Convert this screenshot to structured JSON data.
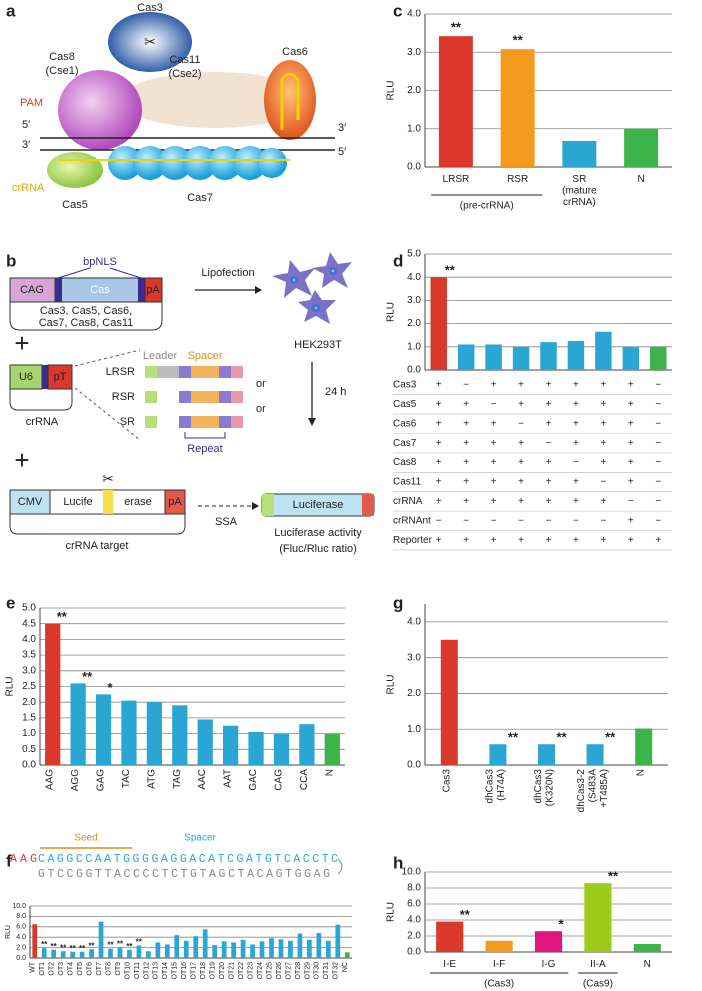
{
  "diagram_a": {
    "panel": "a",
    "cas3": "Cas3",
    "cas8": "Cas8",
    "cse1": "(Cse1)",
    "cas11": "Cas11",
    "cse2": "(Cse2)",
    "cas6": "Cas6",
    "pam": "PAM",
    "five_top": "5′",
    "three_bottom": "3′",
    "three_right_top": "3′",
    "five_right_bottom": "5′",
    "crrna": "crRNA",
    "cas5": "Cas5",
    "cas7": "Cas7"
  },
  "diagram_b": {
    "panel": "b",
    "cag": "CAG",
    "cas": "Cas",
    "pa1": "pA",
    "bpnls": "bpNLS",
    "cas_list1": "Cas3, Cas5, Cas6,",
    "cas_list2": "Cas7, Cas8, Cas11",
    "lipofection": "Lipofection",
    "cells": "HEK293T",
    "plus1": "+",
    "u6": "U6",
    "pt": "pT",
    "crrna": "crRNA",
    "leader": "Leader",
    "spacer": "Spacer",
    "lrsr": "LRSR",
    "rsr": "RSR",
    "sr": "SR",
    "or1": "or",
    "or2": "or",
    "repeat": "Repeat",
    "time": "24 h",
    "plus2": "+",
    "cmv": "CMV",
    "lucife": "Lucife",
    "erase": "erase",
    "pa2": "pA",
    "target": "crRNA target",
    "ssa": "SSA",
    "luciferase": "Luciferase",
    "activity": "Luciferase activity",
    "ratio": "(Fluc/Rluc ratio)"
  },
  "chart_data": [
    {
      "type": "bar",
      "panel": "c",
      "y_label": "RLU",
      "categories": [
        "LRSR",
        "RSR",
        "SR\n(mature\ncrRNA)",
        "N"
      ],
      "values": [
        3.42,
        3.08,
        0.68,
        1.0
      ],
      "colors": [
        "#d9382a",
        "#f39a1e",
        "#2aa6d5",
        "#3cb44a"
      ],
      "significance": [
        "**",
        "**",
        null,
        null
      ],
      "groups": [
        {
          "label": "(pre-crRNA)",
          "from": "LRSR",
          "to": "RSR"
        }
      ],
      "ylim": [
        0,
        4
      ],
      "yticks": [
        {
          "value": 0,
          "label": "0.0"
        },
        {
          "value": 1,
          "label": "1.0"
        },
        {
          "value": 2,
          "label": "2.0"
        },
        {
          "value": 3,
          "label": "3.0"
        },
        {
          "value": 4,
          "label": "4.0"
        }
      ],
      "grid": true
    },
    {
      "type": "bar",
      "panel": "d",
      "y_label": "RLU",
      "categories": [
        null,
        null,
        null,
        null,
        null,
        null,
        null,
        null,
        null
      ],
      "values": [
        4.0,
        1.1,
        1.1,
        1.0,
        1.2,
        1.25,
        1.65,
        1.0,
        1.0
      ],
      "colors": [
        "#d9382a",
        "#2aa6d5",
        "#2aa6d5",
        "#2aa6d5",
        "#2aa6d5",
        "#2aa6d5",
        "#2aa6d5",
        "#2aa6d5",
        "#3cb44a"
      ],
      "significance": [
        "**",
        null,
        null,
        null,
        null,
        null,
        null,
        null,
        null
      ],
      "ylim": [
        0,
        5
      ],
      "yticks": [
        {
          "value": 0,
          "label": "0.0"
        },
        {
          "value": 1,
          "label": "1.0"
        },
        {
          "value": 2,
          "label": "2.0"
        },
        {
          "value": 3,
          "label": "3.0"
        },
        {
          "value": 4,
          "label": "4.0"
        },
        {
          "value": 5,
          "label": "5.0"
        }
      ],
      "grid": true,
      "table": {
        "rows": [
          {
            "label": "Cas3",
            "cells": [
              "+",
              "−",
              "+",
              "+",
              "+",
              "+",
              "+",
              "+",
              "−"
            ]
          },
          {
            "label": "Cas5",
            "cells": [
              "+",
              "+",
              "−",
              "+",
              "+",
              "+",
              "+",
              "+",
              "−"
            ]
          },
          {
            "label": "Cas6",
            "cells": [
              "+",
              "+",
              "+",
              "−",
              "+",
              "+",
              "+",
              "+",
              "−"
            ]
          },
          {
            "label": "Cas7",
            "cells": [
              "+",
              "+",
              "+",
              "+",
              "−",
              "+",
              "+",
              "+",
              "−"
            ]
          },
          {
            "label": "Cas8",
            "cells": [
              "+",
              "+",
              "+",
              "+",
              "+",
              "−",
              "+",
              "+",
              "−"
            ]
          },
          {
            "label": "Cas11",
            "cells": [
              "+",
              "+",
              "+",
              "+",
              "+",
              "+",
              "−",
              "+",
              "−"
            ]
          },
          {
            "label": "crRNA",
            "cells": [
              "+",
              "+",
              "+",
              "+",
              "+",
              "+",
              "+",
              "−",
              "−"
            ]
          },
          {
            "label": "crRNAnt",
            "cells": [
              "−",
              "−",
              "−",
              "−",
              "−",
              "−",
              "−",
              "+",
              "−"
            ]
          },
          {
            "label": "Reporter",
            "cells": [
              "+",
              "+",
              "+",
              "+",
              "+",
              "+",
              "+",
              "+",
              "+"
            ]
          }
        ]
      }
    },
    {
      "type": "bar",
      "panel": "e",
      "y_label": "RLU",
      "categories": [
        "AAG",
        "AGG",
        "GAG",
        "TAC",
        "ATG",
        "TAG",
        "AAC",
        "AAT",
        "GAC",
        "CAG",
        "CCA",
        "N"
      ],
      "values": [
        4.5,
        2.6,
        2.25,
        2.05,
        2.0,
        1.9,
        1.45,
        1.25,
        1.05,
        1.0,
        1.3,
        1.0
      ],
      "colors": [
        "#d9382a",
        "#2aa6d5",
        "#2aa6d5",
        "#2aa6d5",
        "#2aa6d5",
        "#2aa6d5",
        "#2aa6d5",
        "#2aa6d5",
        "#2aa6d5",
        "#2aa6d5",
        "#2aa6d5",
        "#3cb44a"
      ],
      "significance": [
        "**",
        "**",
        "*",
        null,
        null,
        null,
        null,
        null,
        null,
        null,
        null,
        null
      ],
      "ylim": [
        0,
        5
      ],
      "yticks": [
        {
          "value": 0,
          "label": "0.0"
        },
        {
          "value": 0.5,
          "label": "0.5"
        },
        {
          "value": 1,
          "label": "1.0"
        },
        {
          "value": 1.5,
          "label": "1.5"
        },
        {
          "value": 2,
          "label": "2.0"
        },
        {
          "value": 2.5,
          "label": "2.5"
        },
        {
          "value": 3,
          "label": "3.0"
        },
        {
          "value": 3.5,
          "label": "3.5"
        },
        {
          "value": 4,
          "label": "4.0"
        },
        {
          "value": 4.5,
          "label": "4.5"
        },
        {
          "value": 5,
          "label": "5.0"
        }
      ],
      "grid": true
    },
    {
      "type": "bar",
      "panel": "g",
      "y_label": "RLU",
      "categories": [
        "Cas3",
        "dhCas3\n(H74A)",
        "dhCas3\n(K320N)",
        "dhCas3-2\n(S483A\n+T485A)",
        "N"
      ],
      "values": [
        3.5,
        0.58,
        0.58,
        0.58,
        1.02
      ],
      "colors": [
        "#d9382a",
        "#2aa6d5",
        "#2aa6d5",
        "#2aa6d5",
        "#3cb44a"
      ],
      "significance": [
        null,
        "**",
        "**",
        "**",
        null
      ],
      "ylim": [
        0,
        4.5
      ],
      "yticks": [
        {
          "value": 0,
          "label": "0.0"
        },
        {
          "value": 1,
          "label": "1.0"
        },
        {
          "value": 2,
          "label": "2.0"
        },
        {
          "value": 3,
          "label": "3.0"
        },
        {
          "value": 4,
          "label": "4.0"
        }
      ],
      "grid": true
    },
    {
      "type": "bar",
      "panel": "f",
      "y_label": "RLU",
      "sequence": {
        "pam": "AAG",
        "spacer": "CAGGCCAATGGGGAGGACATCGATGTCACCTC",
        "complement": "GTCCGGTTACCCCTCTGTAGCTACAGTGGAG",
        "seed_label": "Seed",
        "spacer_label": "Spacer"
      },
      "categories": [
        "WT",
        "OT1",
        "OT2",
        "OT3",
        "OT4",
        "OT5",
        "OT6",
        "OT7",
        "OT8",
        "OT9",
        "OT10",
        "OT11",
        "OT12",
        "OT13",
        "OT14",
        "OT15",
        "OT16",
        "OT17",
        "OT18",
        "OT19",
        "OT20",
        "OT21",
        "OT22",
        "OT23",
        "OT24",
        "OT25",
        "OT26",
        "OT27",
        "OT28",
        "OT29",
        "OT30",
        "OT31",
        "OT32",
        "NC"
      ],
      "values": [
        6.5,
        1.9,
        1.6,
        1.3,
        1.2,
        1.2,
        1.7,
        7.0,
        1.8,
        2.0,
        1.6,
        2.4,
        1.3,
        3.0,
        2.6,
        4.4,
        3.3,
        4.2,
        5.5,
        2.5,
        3.2,
        3.0,
        3.5,
        2.6,
        3.2,
        3.8,
        3.6,
        3.3,
        4.7,
        3.5,
        4.8,
        3.3,
        6.4,
        1.1
      ],
      "colors": [
        "#d9382a",
        "#2aa6d5",
        "#2aa6d5",
        "#2aa6d5",
        "#2aa6d5",
        "#2aa6d5",
        "#2aa6d5",
        "#2aa6d5",
        "#2aa6d5",
        "#2aa6d5",
        "#2aa6d5",
        "#2aa6d5",
        "#2aa6d5",
        "#2aa6d5",
        "#2aa6d5",
        "#2aa6d5",
        "#2aa6d5",
        "#2aa6d5",
        "#2aa6d5",
        "#2aa6d5",
        "#2aa6d5",
        "#2aa6d5",
        "#2aa6d5",
        "#2aa6d5",
        "#2aa6d5",
        "#2aa6d5",
        "#2aa6d5",
        "#2aa6d5",
        "#2aa6d5",
        "#2aa6d5",
        "#2aa6d5",
        "#2aa6d5",
        "#2aa6d5",
        "#3cb44a"
      ],
      "significance": [
        null,
        "**",
        "**",
        "**",
        "**",
        "**",
        "**",
        null,
        "**",
        "**",
        "**",
        "**",
        null,
        null,
        null,
        null,
        null,
        null,
        null,
        null,
        null,
        null,
        null,
        null,
        null,
        null,
        null,
        null,
        null,
        null,
        null,
        null,
        null,
        null
      ],
      "ylim": [
        0,
        10
      ],
      "yticks": [
        {
          "value": 0,
          "label": "0.0"
        },
        {
          "value": 2,
          "label": "2.0"
        },
        {
          "value": 4,
          "label": "4.0"
        },
        {
          "value": 6,
          "label": "6.0"
        },
        {
          "value": 8,
          "label": "8.0"
        },
        {
          "value": 10,
          "label": "10.0"
        }
      ],
      "grid": true
    },
    {
      "type": "bar",
      "panel": "h",
      "y_label": "RLU",
      "categories": [
        "I-E",
        "I-F",
        "I-G",
        "II-A",
        "N"
      ],
      "values": [
        3.8,
        1.4,
        2.6,
        8.6,
        1.0
      ],
      "colors": [
        "#d9382a",
        "#f39a1e",
        "#e0167f",
        "#9dcb1b",
        "#3cb44a"
      ],
      "significance": [
        "**",
        null,
        "*",
        "**",
        null
      ],
      "groups": [
        {
          "label": "(Cas3)",
          "from": "I-E",
          "to": "I-G"
        },
        {
          "label": "(Cas9)",
          "from": "II-A",
          "to": "II-A"
        }
      ],
      "ylim": [
        0,
        10
      ],
      "yticks": [
        {
          "value": 0,
          "label": "0.0"
        },
        {
          "value": 2,
          "label": "2.0"
        },
        {
          "value": 4,
          "label": "4.0"
        },
        {
          "value": 6,
          "label": "6.0"
        },
        {
          "value": 8,
          "label": "8.0"
        },
        {
          "value": 10,
          "label": "10.0"
        }
      ],
      "grid": true
    }
  ]
}
